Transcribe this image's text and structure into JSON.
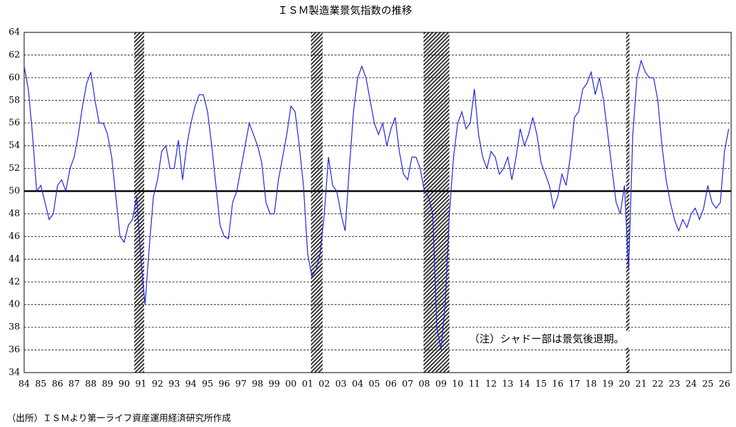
{
  "chart_data": {
    "type": "line",
    "title": "ＩＳＭ製造業景気指数の推移",
    "note": "（注）シャドー部は景気後退期。",
    "source": "（出所）ＩＳＭより第一ライフ資産運用経済研究所作成",
    "x": [
      84,
      84.25,
      84.5,
      84.75,
      85,
      85.25,
      85.5,
      85.75,
      86,
      86.25,
      86.5,
      86.75,
      87,
      87.25,
      87.5,
      87.75,
      88,
      88.25,
      88.5,
      88.75,
      89,
      89.25,
      89.5,
      89.75,
      90,
      90.25,
      90.5,
      90.75,
      91,
      91.25,
      91.5,
      91.75,
      92,
      92.25,
      92.5,
      92.75,
      93,
      93.25,
      93.5,
      93.75,
      94,
      94.25,
      94.5,
      94.75,
      95,
      95.25,
      95.5,
      95.75,
      96,
      96.25,
      96.5,
      96.75,
      97,
      97.25,
      97.5,
      97.75,
      98,
      98.25,
      98.5,
      98.75,
      99,
      99.25,
      99.5,
      99.75,
      100,
      100.25,
      100.5,
      100.75,
      101,
      101.25,
      101.5,
      101.75,
      102,
      102.25,
      102.5,
      102.75,
      103,
      103.25,
      103.5,
      103.75,
      104,
      104.25,
      104.5,
      104.75,
      105,
      105.25,
      105.5,
      105.75,
      106,
      106.25,
      106.5,
      106.75,
      107,
      107.25,
      107.5,
      107.75,
      108,
      108.25,
      108.5,
      108.75,
      109,
      109.25,
      109.5,
      109.75,
      110,
      110.25,
      110.5,
      110.75,
      111,
      111.25,
      111.5,
      111.75,
      112,
      112.25,
      112.5,
      112.75,
      113,
      113.25,
      113.5,
      113.75,
      114,
      114.25,
      114.5,
      114.75,
      115,
      115.25,
      115.5,
      115.75,
      116,
      116.25,
      116.5,
      116.75,
      117,
      117.25,
      117.5,
      117.75,
      118,
      118.25,
      118.5,
      118.75,
      119,
      119.25,
      119.5,
      119.75,
      120,
      120.25,
      120.5,
      120.75,
      121,
      121.25,
      121.5,
      121.75,
      122,
      122.25,
      122.5,
      122.75,
      123,
      123.25,
      123.5,
      123.75,
      124,
      124.25,
      124.5,
      124.75,
      125,
      125.25,
      125.5,
      125.75,
      126,
      126.25
    ],
    "series": [
      {
        "name": "ISM製造業景気指数",
        "color": "#1f1fe0",
        "values": [
          61,
          59,
          55,
          50,
          50.5,
          49,
          47.5,
          48,
          50.5,
          51,
          50,
          52,
          53,
          55,
          57.5,
          59.5,
          60.5,
          58,
          56,
          56,
          55,
          53,
          49.5,
          46,
          45.5,
          47,
          47.5,
          49.5,
          44,
          40,
          45,
          49.5,
          51,
          53.5,
          54,
          52,
          52,
          54.5,
          51,
          54,
          56,
          57.5,
          58.5,
          58.5,
          57,
          54,
          50.5,
          47,
          46,
          45.8,
          49,
          50,
          52,
          54,
          56,
          55,
          54,
          52.5,
          49,
          48,
          48,
          51,
          53,
          55,
          57.5,
          57,
          54,
          50.5,
          44.5,
          42.5,
          43,
          44.5,
          48,
          53,
          50.5,
          50,
          48,
          46.5,
          52,
          57,
          60,
          61,
          60,
          58,
          56,
          55,
          56,
          54,
          55.5,
          56.5,
          53.5,
          51.5,
          51,
          53,
          53,
          52,
          50,
          49.5,
          48,
          38,
          36,
          40,
          48,
          53,
          56,
          57,
          55.5,
          56,
          59,
          55,
          53,
          52,
          53.5,
          53,
          51.5,
          52,
          53,
          51,
          53,
          55.5,
          54,
          55,
          56.5,
          55,
          52.5,
          51.5,
          50.5,
          48.5,
          49.5,
          51.5,
          50.5,
          53,
          56.5,
          57,
          59,
          59.5,
          60.5,
          58.5,
          60,
          58,
          55,
          52,
          49,
          48,
          50.5,
          43,
          55,
          60,
          61.5,
          60.5,
          60,
          60,
          58,
          54,
          51,
          49,
          47.5,
          46.5,
          47.5,
          46.8,
          48,
          48.5,
          47.5,
          48.5,
          50.5,
          49,
          48.5,
          49,
          53.5,
          55.5
        ]
      }
    ],
    "shaded": [
      [
        90.6,
        91.2
      ],
      [
        101.2,
        101.9
      ],
      [
        107.95,
        109.5
      ],
      [
        120.1,
        120.3
      ]
    ],
    "reference_line": 50,
    "xlim": [
      84,
      126.4
    ],
    "xticks": [
      {
        "value": 84,
        "label": "84"
      },
      {
        "value": 85,
        "label": "85"
      },
      {
        "value": 86,
        "label": "86"
      },
      {
        "value": 87,
        "label": "87"
      },
      {
        "value": 88,
        "label": "88"
      },
      {
        "value": 89,
        "label": "89"
      },
      {
        "value": 90,
        "label": "90"
      },
      {
        "value": 91,
        "label": "91"
      },
      {
        "value": 92,
        "label": "92"
      },
      {
        "value": 93,
        "label": "93"
      },
      {
        "value": 94,
        "label": "94"
      },
      {
        "value": 95,
        "label": "95"
      },
      {
        "value": 96,
        "label": "96"
      },
      {
        "value": 97,
        "label": "97"
      },
      {
        "value": 98,
        "label": "98"
      },
      {
        "value": 99,
        "label": "99"
      },
      {
        "value": 100,
        "label": "00"
      },
      {
        "value": 101,
        "label": "01"
      },
      {
        "value": 102,
        "label": "02"
      },
      {
        "value": 103,
        "label": "03"
      },
      {
        "value": 104,
        "label": "04"
      },
      {
        "value": 105,
        "label": "05"
      },
      {
        "value": 106,
        "label": "06"
      },
      {
        "value": 107,
        "label": "07"
      },
      {
        "value": 108,
        "label": "08"
      },
      {
        "value": 109,
        "label": "09"
      },
      {
        "value": 110,
        "label": "10"
      },
      {
        "value": 111,
        "label": "11"
      },
      {
        "value": 112,
        "label": "12"
      },
      {
        "value": 113,
        "label": "13"
      },
      {
        "value": 114,
        "label": "14"
      },
      {
        "value": 115,
        "label": "15"
      },
      {
        "value": 116,
        "label": "16"
      },
      {
        "value": 117,
        "label": "17"
      },
      {
        "value": 118,
        "label": "18"
      },
      {
        "value": 119,
        "label": "19"
      },
      {
        "value": 120,
        "label": "20"
      },
      {
        "value": 121,
        "label": "21"
      },
      {
        "value": 122,
        "label": "22"
      },
      {
        "value": 123,
        "label": "23"
      },
      {
        "value": 124,
        "label": "24"
      },
      {
        "value": 125,
        "label": "25"
      },
      {
        "value": 126,
        "label": "26"
      }
    ],
    "ylim": [
      34,
      64
    ],
    "yticks": [
      34,
      36,
      38,
      40,
      42,
      44,
      46,
      48,
      50,
      52,
      54,
      56,
      58,
      60,
      62,
      64
    ],
    "grid": true
  }
}
